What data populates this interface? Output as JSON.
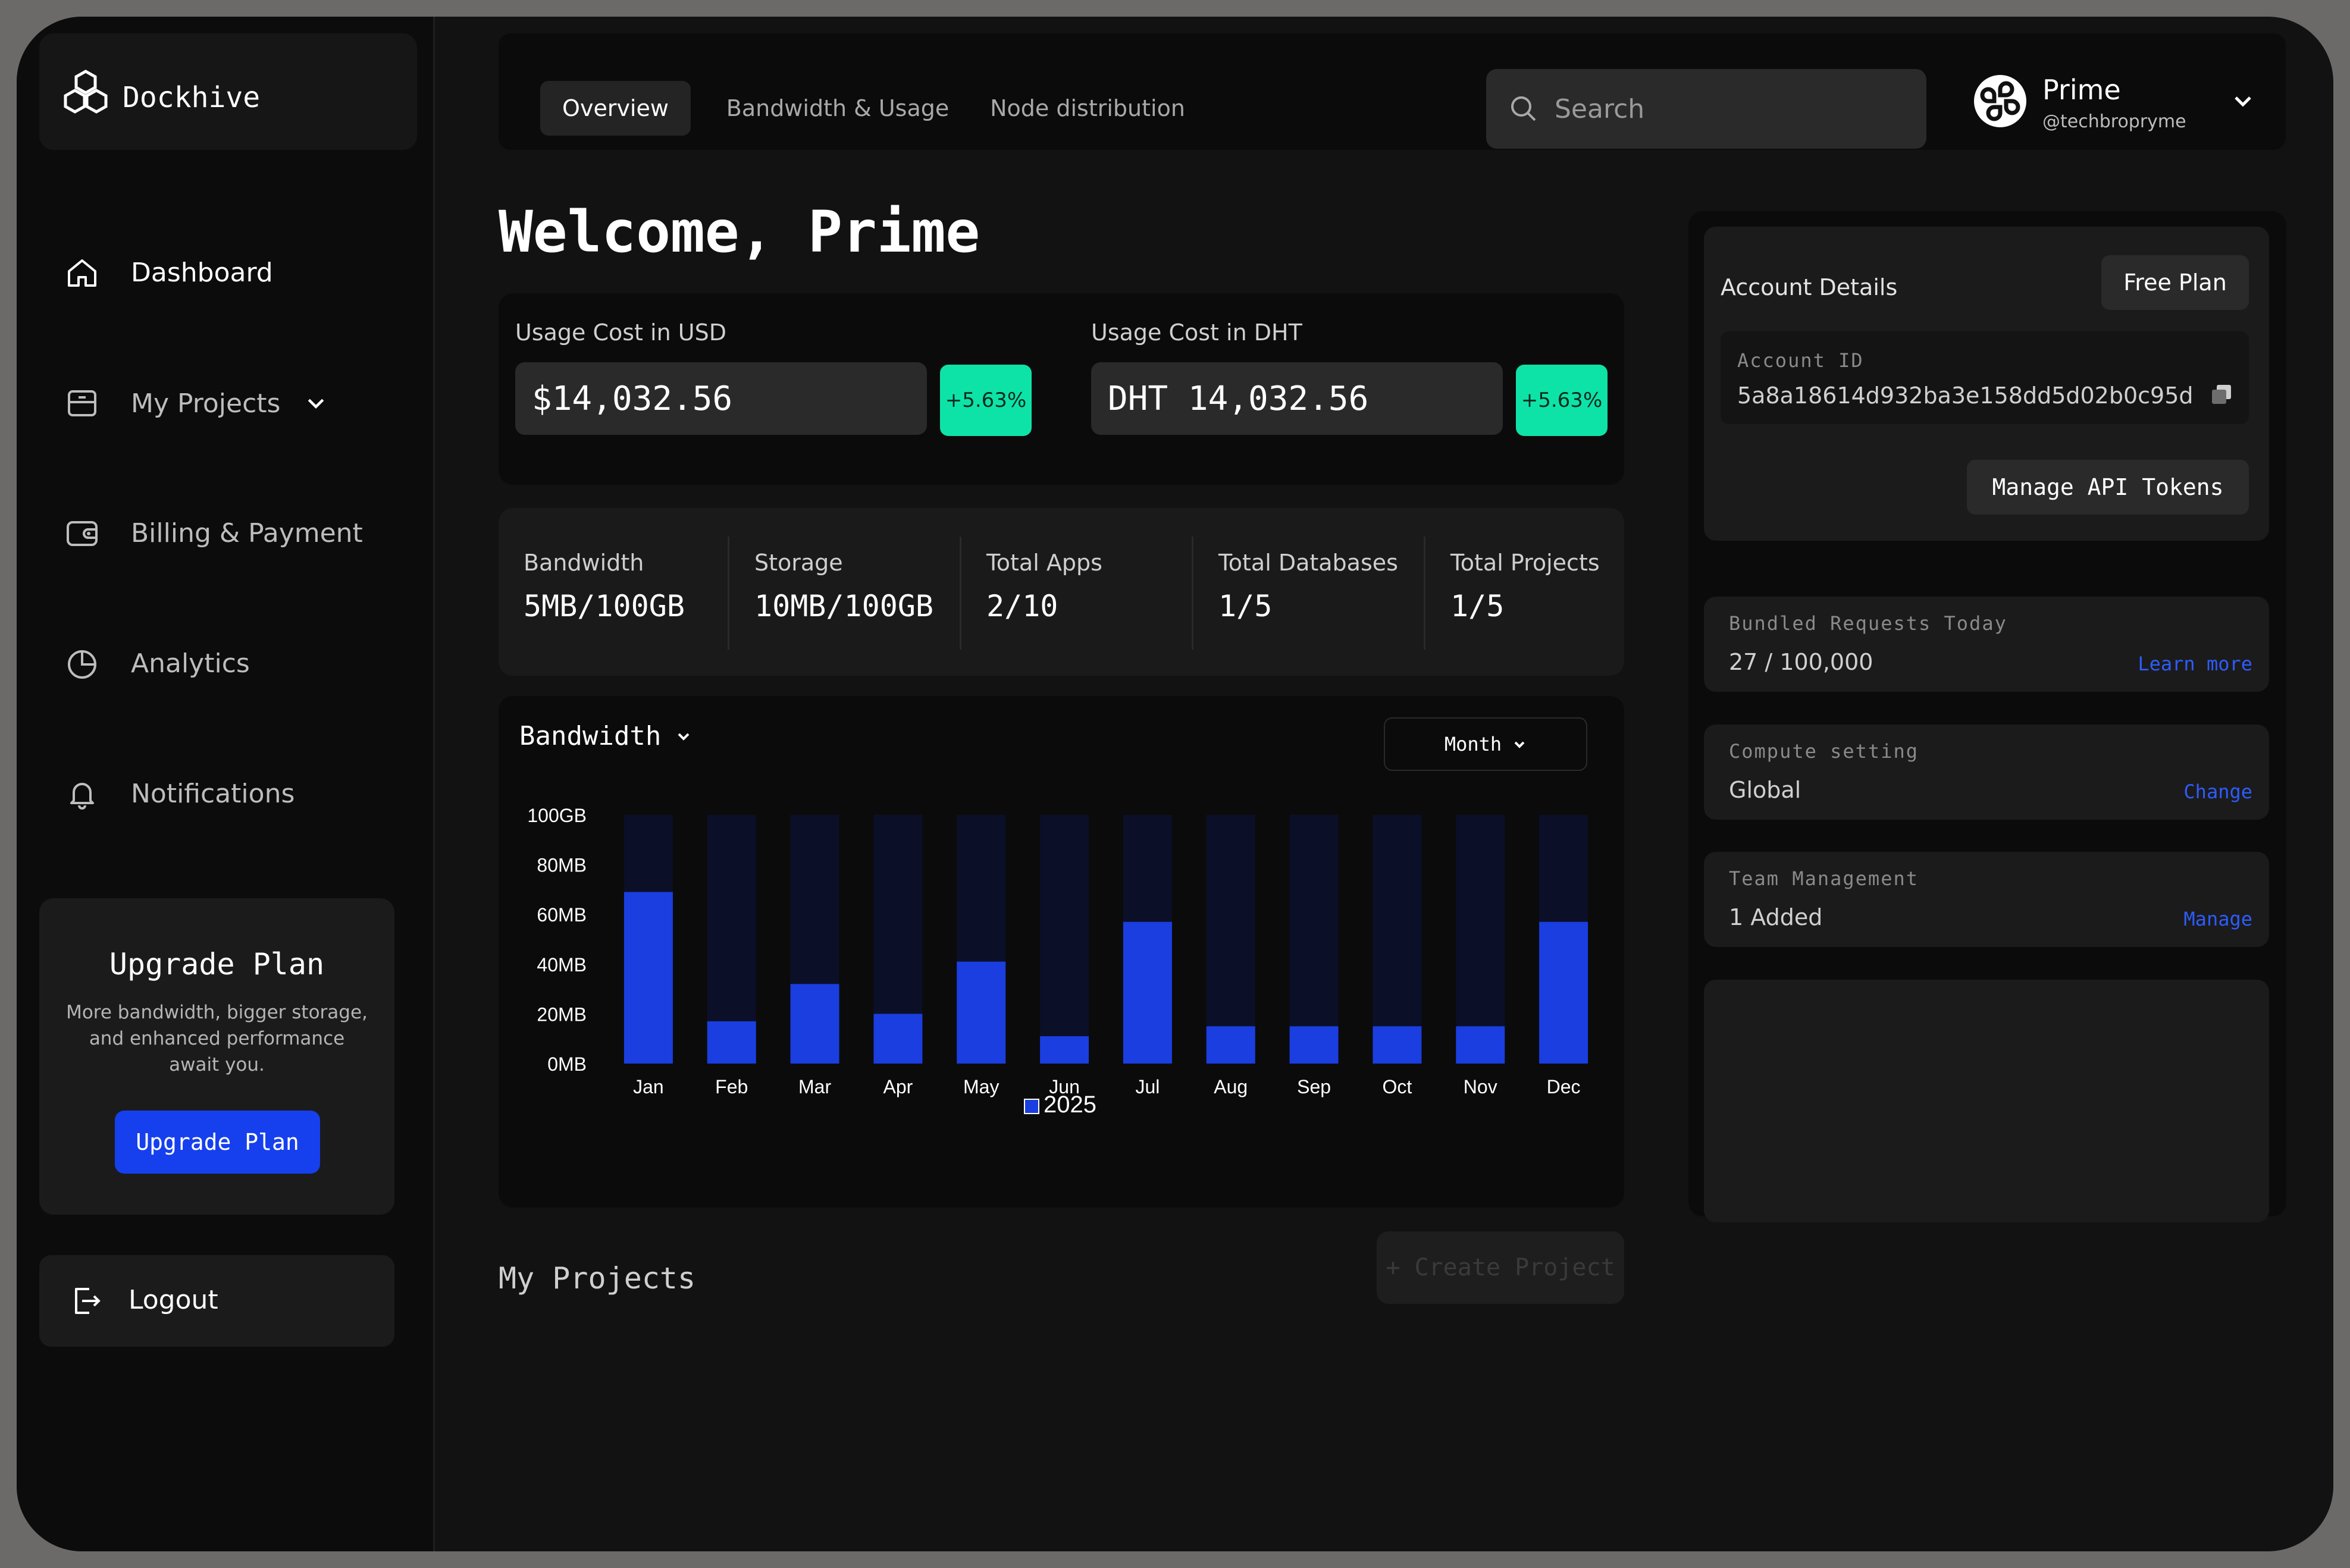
{
  "app": {
    "name": "Dockhive"
  },
  "sidebar": {
    "items": [
      {
        "label": "Dashboard",
        "icon": "home-icon"
      },
      {
        "label": "My Projects",
        "icon": "folder-icon"
      },
      {
        "label": "Billing & Payment",
        "icon": "wallet-icon"
      },
      {
        "label": "Analytics",
        "icon": "pie-chart-icon"
      },
      {
        "label": "Notifications",
        "icon": "bell-icon"
      }
    ],
    "upgrade": {
      "title": "Upgrade Plan",
      "description": "More bandwidth, bigger storage, and enhanced performance await you.",
      "button": "Upgrade Plan"
    },
    "logout": "Logout"
  },
  "topbar": {
    "tabs": [
      "Overview",
      "Bandwidth & Usage",
      "Node distribution"
    ],
    "search_placeholder": "Search",
    "user": {
      "name": "Prime",
      "handle": "@techbropryme"
    }
  },
  "main": {
    "welcome": "Welcome, Prime",
    "usage": [
      {
        "label": "Usage Cost in USD",
        "value": "$14,032.56",
        "change": "+5.63%"
      },
      {
        "label": "Usage Cost in DHT",
        "value": "DHT 14,032.56",
        "change": "+5.63%"
      }
    ],
    "stats": [
      {
        "label": "Bandwidth",
        "value": "5MB/100GB"
      },
      {
        "label": "Storage",
        "value": "10MB/100GB"
      },
      {
        "label": "Total Apps",
        "value": "2/10"
      },
      {
        "label": "Total Databases",
        "value": "1/5"
      },
      {
        "label": "Total Projects",
        "value": "1/5"
      }
    ],
    "chart_header": {
      "title": "Bandwidth",
      "period": "Month"
    },
    "projects": {
      "title": "My Projects",
      "create": "+ Create Project"
    }
  },
  "chart_data": {
    "type": "bar",
    "categories": [
      "Jan",
      "Feb",
      "Mar",
      "Apr",
      "May",
      "Jun",
      "Jul",
      "Aug",
      "Sep",
      "Oct",
      "Nov",
      "Dec"
    ],
    "y_tick_labels": [
      "0MB",
      "20MB",
      "40MB",
      "60MB",
      "80MB",
      "100GB"
    ],
    "ylim": [
      0,
      100
    ],
    "series": [
      {
        "name": "2025",
        "values": [
          69,
          17,
          32,
          20,
          41,
          11,
          57,
          15,
          15,
          15,
          15,
          57
        ]
      }
    ],
    "legend": "bottom-center",
    "colors": {
      "bar": "#1a3ee0",
      "track": "#0b1028"
    }
  },
  "account": {
    "title": "Account Details",
    "plan": "Free Plan",
    "id_label": "Account ID",
    "id_value": "5a8a18614d932ba3e158dd5d02b0c95d",
    "api_button": "Manage API Tokens",
    "bundled": {
      "label": "Bundled Requests Today",
      "value": "27 / 100,000",
      "link": "Learn more"
    },
    "compute": {
      "label": "Compute setting",
      "value": "Global",
      "link": "Change"
    },
    "team": {
      "label": "Team Management",
      "value": "1 Added",
      "link": "Manage"
    }
  },
  "colors": {
    "accent": "#1640ee",
    "positive": "#0ee3a7",
    "background": "#121212"
  }
}
